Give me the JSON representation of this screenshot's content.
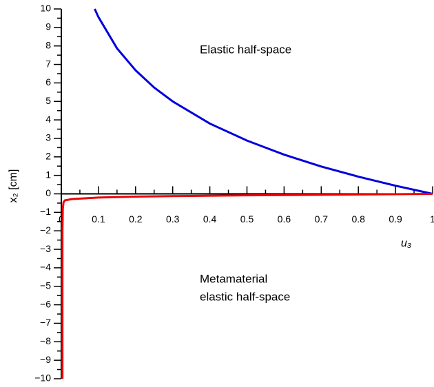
{
  "chart_data": {
    "type": "line",
    "x_label": "u₃",
    "y_label": "x₂ [cm]",
    "xlim": [
      0,
      1
    ],
    "ylim": [
      -10,
      10
    ],
    "xticks": [
      0,
      0.1,
      0.2,
      0.3,
      0.4,
      0.5,
      0.6,
      0.7,
      0.8,
      0.9,
      1
    ],
    "x_minor_ticks": [
      0.05,
      0.15,
      0.25,
      0.35,
      0.45,
      0.55,
      0.65,
      0.75,
      0.85,
      0.95
    ],
    "yticks": [
      10,
      9,
      8,
      7,
      6,
      5,
      4,
      3,
      2,
      1,
      0,
      {
        "value": -1,
        "label": "−1"
      },
      {
        "value": -2,
        "label": "−2"
      },
      {
        "value": -3,
        "label": "−3"
      },
      {
        "value": -4,
        "label": "−4"
      },
      {
        "value": -5,
        "label": "−5"
      },
      {
        "value": -6,
        "label": "−6"
      },
      {
        "value": -7,
        "label": "−7"
      },
      {
        "value": -8,
        "label": "−8"
      },
      {
        "value": -9,
        "label": "−9"
      },
      {
        "value": -10,
        "label": "−10"
      }
    ],
    "y_minor_ticks": [
      9.5,
      8.5,
      7.5,
      6.5,
      5.5,
      4.5,
      3.5,
      2.5,
      1.5,
      0.5,
      -0.5,
      -1.5,
      -2.5,
      -3.5,
      -4.5,
      -5.5,
      -6.5,
      -7.5,
      -8.5,
      -9.5
    ],
    "series": [
      {
        "color": "#0000dd",
        "x": [
          0.09,
          0.1,
          0.15,
          0.2,
          0.25,
          0.3,
          0.4,
          0.5,
          0.6,
          0.7,
          0.8,
          0.9,
          1.0
        ],
        "values": [
          10.0,
          9.56,
          7.87,
          6.68,
          5.75,
          5.0,
          3.8,
          2.88,
          2.12,
          1.48,
          0.93,
          0.44,
          0
        ]
      },
      {
        "color": "#ee0000",
        "x": [
          0.003,
          0.003,
          0.004,
          0.006,
          0.01,
          0.03,
          0.1,
          0.2,
          0.3,
          0.5,
          0.7,
          0.9,
          1.0
        ],
        "values": [
          -10,
          -2,
          -0.8,
          -0.45,
          -0.35,
          -0.28,
          -0.2,
          -0.15,
          -0.12,
          -0.08,
          -0.05,
          -0.02,
          0
        ]
      }
    ],
    "annotations": [
      {
        "lines": [
          "Elastic half-space"
        ]
      },
      {
        "lines": [
          "Metamaterial",
          "elastic half-space"
        ]
      }
    ]
  }
}
